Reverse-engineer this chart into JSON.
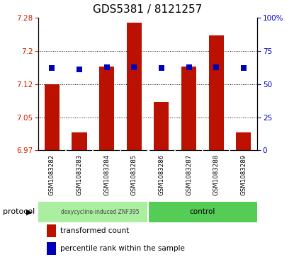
{
  "title": "GDS5381 / 8121257",
  "categories": [
    "GSM1083282",
    "GSM1083283",
    "GSM1083284",
    "GSM1083285",
    "GSM1083286",
    "GSM1083287",
    "GSM1083288",
    "GSM1083289"
  ],
  "bar_values": [
    7.125,
    7.015,
    7.165,
    7.265,
    7.085,
    7.165,
    7.235,
    7.015
  ],
  "dot_values": [
    62,
    61,
    63,
    63,
    62,
    63,
    63,
    62
  ],
  "ylim_left": [
    6.975,
    7.275
  ],
  "ylim_right": [
    0,
    100
  ],
  "yticks_left": [
    6.975,
    7.05,
    7.125,
    7.2,
    7.275
  ],
  "yticks_right": [
    0,
    25,
    50,
    75,
    100
  ],
  "bar_color": "#bb1100",
  "dot_color": "#0000bb",
  "background_color": "#ffffff",
  "title_fontsize": 11,
  "group1_color": "#aaeea0",
  "group2_color": "#55cc55",
  "group1_label": "doxycycline-induced ZNF395",
  "group2_label": "control",
  "protocol_label": "protocol",
  "legend_items": [
    {
      "color": "#bb1100",
      "label": "transformed count"
    },
    {
      "color": "#0000bb",
      "label": "percentile rank within the sample"
    }
  ],
  "base_value": 6.975,
  "n_group1": 4,
  "n_group2": 4
}
